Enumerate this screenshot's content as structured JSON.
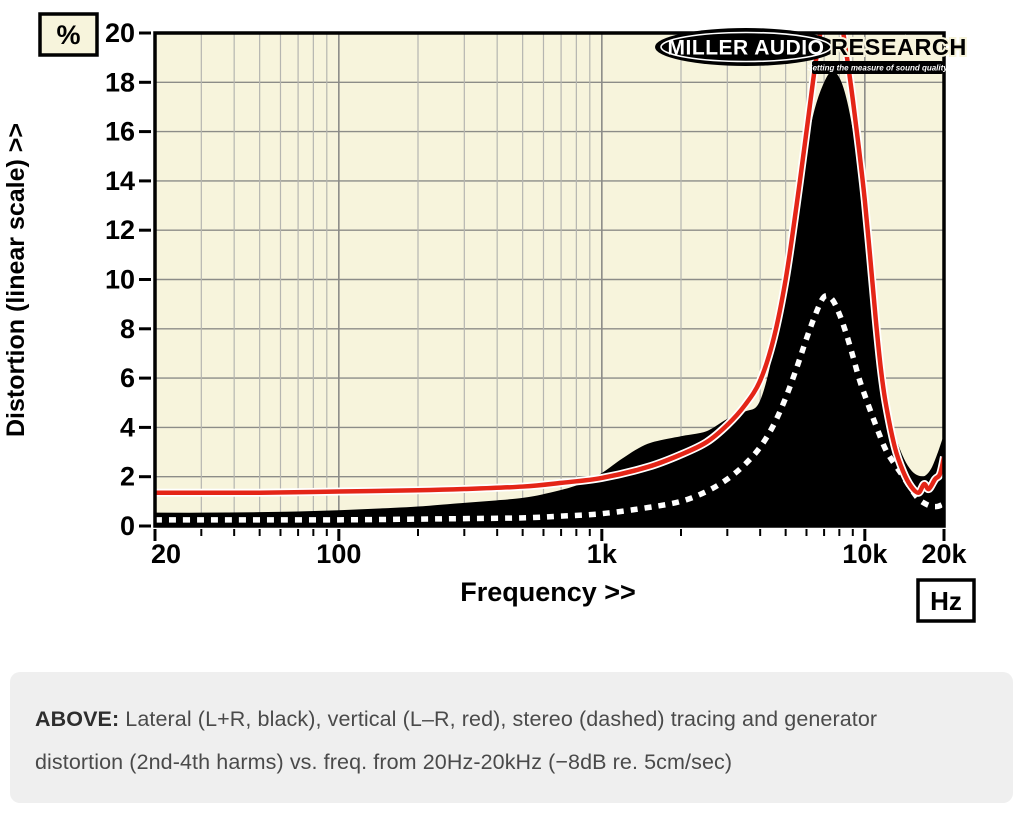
{
  "chart": {
    "ylabel": "Distortion (linear scale) >>",
    "xlabel": "Frequency >>",
    "y_unit_box": "%",
    "x_unit_box": "Hz",
    "logo": {
      "primary": "MILLER AUDIO",
      "secondary": "RESEARCH",
      "tagline": "Setting the measure of sound quality"
    },
    "colors": {
      "plot_bg": "#f7f4dc",
      "grid_minor": "#b5b5b0",
      "grid_major": "#8c8c88",
      "red_trace": "#e42517",
      "black_trace": "#000000",
      "dashed_trace": "#ffffff",
      "border": "#000000"
    }
  },
  "caption": {
    "prefix": "ABOVE:",
    "body": " Lateral (L+R, black), vertical (L–R, red), stereo (dashed) tracing and generator distortion (2nd-4th harms) vs. freq. from 20Hz-20kHz (−8dB re. 5cm/sec)"
  },
  "chart_data": {
    "type": "line",
    "x_scale": "log",
    "x_range": [
      20,
      20000
    ],
    "y_range": [
      0,
      20
    ],
    "xlabel": "Frequency >>",
    "ylabel": "Distortion (linear scale) >>",
    "grid": true,
    "legend_position": "none",
    "x_ticks_major": [
      {
        "f": 20,
        "label": "20"
      },
      {
        "f": 100,
        "label": "100"
      },
      {
        "f": 1000,
        "label": "1k"
      },
      {
        "f": 10000,
        "label": "10k"
      },
      {
        "f": 20000,
        "label": "20k"
      }
    ],
    "x_ticks_minor": [
      30,
      40,
      50,
      60,
      70,
      80,
      90,
      200,
      300,
      400,
      500,
      600,
      700,
      800,
      900,
      2000,
      3000,
      4000,
      5000,
      6000,
      7000,
      8000,
      9000
    ],
    "x_grid_major": [
      100,
      1000,
      10000
    ],
    "y_ticks": [
      0,
      2,
      4,
      6,
      8,
      10,
      12,
      14,
      16,
      18,
      20
    ],
    "series": [
      {
        "name": "lateral (L+R)",
        "style": "filled-area",
        "color": "#000000",
        "points": [
          [
            20,
            0.5
          ],
          [
            30,
            0.5
          ],
          [
            50,
            0.52
          ],
          [
            70,
            0.55
          ],
          [
            100,
            0.6
          ],
          [
            150,
            0.68
          ],
          [
            200,
            0.75
          ],
          [
            300,
            0.9
          ],
          [
            400,
            1.0
          ],
          [
            500,
            1.1
          ],
          [
            600,
            1.25
          ],
          [
            800,
            1.6
          ],
          [
            1000,
            2.1
          ],
          [
            1200,
            2.7
          ],
          [
            1500,
            3.3
          ],
          [
            2000,
            3.6
          ],
          [
            2500,
            3.8
          ],
          [
            3000,
            4.3
          ],
          [
            3500,
            4.6
          ],
          [
            4000,
            5.0
          ],
          [
            4500,
            7.0
          ],
          [
            5000,
            10.3
          ],
          [
            5500,
            13.0
          ],
          [
            6000,
            15.2
          ],
          [
            6500,
            16.9
          ],
          [
            7000,
            17.9
          ],
          [
            7500,
            18.4
          ],
          [
            8000,
            18.1
          ],
          [
            8500,
            17.2
          ],
          [
            9000,
            15.8
          ],
          [
            9500,
            14.0
          ],
          [
            10000,
            12.0
          ],
          [
            10500,
            9.8
          ],
          [
            11000,
            7.8
          ],
          [
            11500,
            6.2
          ],
          [
            12000,
            5.0
          ],
          [
            13000,
            3.6
          ],
          [
            14000,
            2.7
          ],
          [
            15000,
            2.2
          ],
          [
            16000,
            2.0
          ],
          [
            17000,
            2.0
          ],
          [
            18000,
            2.3
          ],
          [
            19000,
            2.9
          ],
          [
            20000,
            3.6
          ]
        ]
      },
      {
        "name": "vertical (L–R)",
        "style": "solid-line",
        "color": "#e42517",
        "points": [
          [
            20,
            1.35
          ],
          [
            30,
            1.35
          ],
          [
            50,
            1.35
          ],
          [
            100,
            1.4
          ],
          [
            200,
            1.45
          ],
          [
            300,
            1.5
          ],
          [
            500,
            1.6
          ],
          [
            700,
            1.75
          ],
          [
            1000,
            1.95
          ],
          [
            1500,
            2.4
          ],
          [
            2000,
            2.9
          ],
          [
            2500,
            3.4
          ],
          [
            3000,
            4.1
          ],
          [
            3500,
            4.9
          ],
          [
            4000,
            5.9
          ],
          [
            4500,
            7.6
          ],
          [
            5000,
            10.0
          ],
          [
            5500,
            13.0
          ],
          [
            6000,
            16.0
          ],
          [
            6500,
            18.8
          ],
          [
            7000,
            20.8
          ],
          [
            7500,
            21.6
          ],
          [
            8000,
            20.9
          ],
          [
            8500,
            19.2
          ],
          [
            9000,
            17.3
          ],
          [
            9500,
            15.3
          ],
          [
            10000,
            13.2
          ],
          [
            10500,
            10.8
          ],
          [
            11000,
            8.4
          ],
          [
            11500,
            6.4
          ],
          [
            12000,
            5.0
          ],
          [
            13000,
            3.2
          ],
          [
            14000,
            2.2
          ],
          [
            15000,
            1.6
          ],
          [
            16000,
            1.35
          ],
          [
            16800,
            1.7
          ],
          [
            17500,
            1.5
          ],
          [
            18500,
            1.9
          ],
          [
            19300,
            2.1
          ],
          [
            20000,
            2.8
          ]
        ]
      },
      {
        "name": "stereo (dashed)",
        "style": "dashed-line",
        "color": "#ffffff",
        "points": [
          [
            20,
            0.25
          ],
          [
            30,
            0.25
          ],
          [
            50,
            0.25
          ],
          [
            100,
            0.25
          ],
          [
            200,
            0.28
          ],
          [
            300,
            0.3
          ],
          [
            500,
            0.33
          ],
          [
            700,
            0.4
          ],
          [
            1000,
            0.5
          ],
          [
            1500,
            0.75
          ],
          [
            2000,
            1.0
          ],
          [
            2500,
            1.4
          ],
          [
            3000,
            1.9
          ],
          [
            3500,
            2.5
          ],
          [
            4000,
            3.2
          ],
          [
            4500,
            4.1
          ],
          [
            5000,
            5.2
          ],
          [
            5500,
            6.4
          ],
          [
            6000,
            7.6
          ],
          [
            6500,
            8.6
          ],
          [
            7000,
            9.3
          ],
          [
            7500,
            9.2
          ],
          [
            8000,
            8.6
          ],
          [
            8500,
            7.8
          ],
          [
            9000,
            6.9
          ],
          [
            9500,
            6.0
          ],
          [
            10000,
            5.3
          ],
          [
            11000,
            4.1
          ],
          [
            12000,
            3.1
          ],
          [
            13000,
            2.5
          ],
          [
            14000,
            2.0
          ],
          [
            15000,
            1.5
          ],
          [
            16000,
            1.1
          ],
          [
            17000,
            0.9
          ],
          [
            18000,
            0.8
          ],
          [
            19000,
            0.8
          ],
          [
            20000,
            0.9
          ]
        ]
      }
    ]
  }
}
